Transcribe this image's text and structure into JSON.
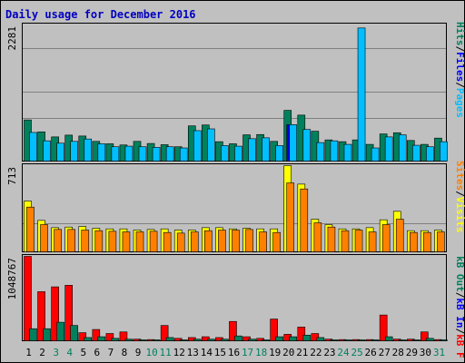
{
  "chart_data": [
    {
      "type": "bar",
      "title": "Daily usage for December 2016",
      "categories": [
        "1",
        "2",
        "3",
        "4",
        "5",
        "6",
        "7",
        "8",
        "9",
        "10",
        "11",
        "12",
        "13",
        "14",
        "15",
        "16",
        "17",
        "18",
        "19",
        "20",
        "21",
        "22",
        "23",
        "24",
        "25",
        "26",
        "27",
        "28",
        "29",
        "30",
        "31"
      ],
      "weekend_days": [
        "3",
        "4",
        "10",
        "11",
        "17",
        "18",
        "24",
        "25",
        "31"
      ],
      "y_tick_label": "2281",
      "ylim": [
        0,
        2281
      ],
      "right_labels": [
        "Pages",
        "Files",
        "Hits"
      ],
      "series": [
        {
          "name": "Hits",
          "color": "#00805c",
          "values": [
            690,
            490,
            405,
            435,
            420,
            330,
            290,
            270,
            330,
            295,
            275,
            240,
            590,
            605,
            325,
            290,
            440,
            445,
            330,
            850,
            770,
            500,
            355,
            325,
            355,
            280,
            455,
            475,
            345,
            280,
            385
          ]
        },
        {
          "name": "Files",
          "color": "#0000ff",
          "values": [
            0,
            0,
            0,
            0,
            0,
            0,
            0,
            0,
            0,
            0,
            0,
            0,
            0,
            0,
            0,
            0,
            0,
            0,
            0,
            610,
            0,
            0,
            0,
            0,
            0,
            0,
            0,
            0,
            0,
            0,
            0
          ]
        },
        {
          "name": "Pages",
          "color": "#00bfff",
          "values": [
            480,
            340,
            300,
            330,
            370,
            290,
            240,
            250,
            240,
            230,
            240,
            220,
            510,
            540,
            260,
            250,
            375,
            390,
            260,
            610,
            530,
            310,
            340,
            280,
            2230,
            220,
            405,
            440,
            265,
            240,
            325
          ]
        }
      ]
    },
    {
      "type": "bar",
      "y_tick_label": "713",
      "ylim": [
        0,
        713
      ],
      "right_labels": [
        "Visits",
        "Sites"
      ],
      "series": [
        {
          "name": "Visits",
          "color": "#ffff00",
          "values": [
            420,
            260,
            200,
            205,
            210,
            195,
            190,
            190,
            180,
            185,
            190,
            180,
            180,
            200,
            200,
            190,
            195,
            190,
            190,
            713,
            560,
            270,
            225,
            190,
            190,
            200,
            265,
            335,
            175,
            175,
            180
          ]
        },
        {
          "name": "Sites",
          "color": "#ff8000",
          "values": [
            370,
            225,
            185,
            185,
            180,
            175,
            170,
            165,
            165,
            170,
            160,
            155,
            165,
            175,
            180,
            180,
            185,
            165,
            160,
            570,
            520,
            240,
            205,
            175,
            180,
            165,
            225,
            270,
            160,
            160,
            165
          ]
        }
      ]
    },
    {
      "type": "bar",
      "y_tick_label": "1048767",
      "ylim": [
        0,
        1048767
      ],
      "right_labels": [
        "kB F",
        "kB In",
        "kB Out"
      ],
      "series": [
        {
          "name": "kB F",
          "color": "#ff0000",
          "values": [
            1048767,
            610000,
            670000,
            690000,
            100000,
            140000,
            90000,
            110000,
            20000,
            15000,
            190000,
            30000,
            40000,
            50000,
            40000,
            240000,
            50000,
            30000,
            270000,
            80000,
            170000,
            90000,
            20000,
            15000,
            15000,
            15000,
            320000,
            20000,
            20000,
            110000,
            15000
          ]
        },
        {
          "name": "kB In",
          "color": "#0000ff",
          "values": [
            0,
            0,
            0,
            0,
            0,
            0,
            0,
            0,
            0,
            0,
            0,
            0,
            0,
            0,
            0,
            0,
            0,
            0,
            0,
            0,
            0,
            0,
            0,
            0,
            0,
            0,
            0,
            0,
            0,
            0,
            0
          ]
        },
        {
          "name": "kB Out",
          "color": "#00805c",
          "values": [
            150000,
            150000,
            230000,
            190000,
            40000,
            50000,
            30000,
            20000,
            10000,
            10000,
            40000,
            10000,
            20000,
            20000,
            20000,
            60000,
            20000,
            10000,
            50000,
            50000,
            70000,
            40000,
            10000,
            10000,
            10000,
            10000,
            50000,
            10000,
            10000,
            30000,
            10000
          ]
        }
      ]
    }
  ]
}
